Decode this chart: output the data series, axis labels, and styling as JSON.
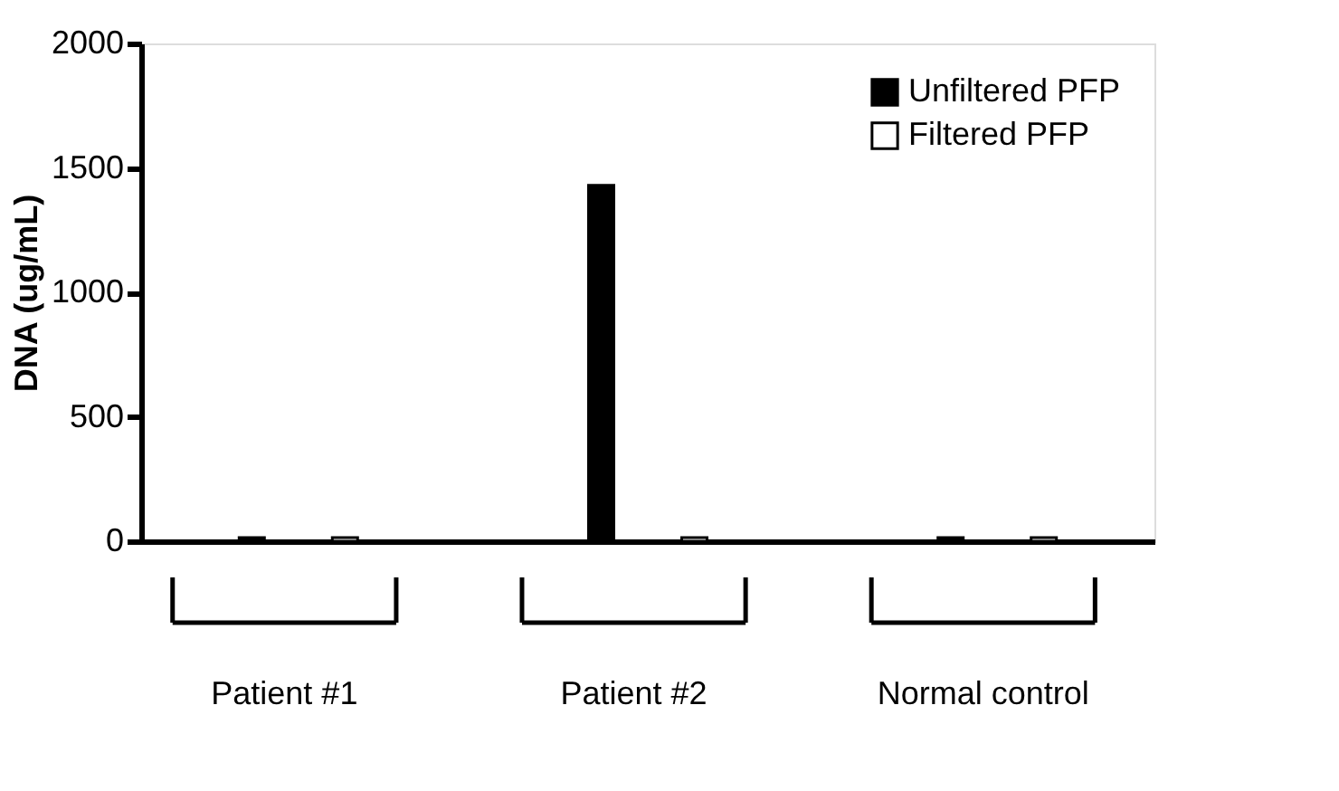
{
  "chart_data": {
    "type": "bar",
    "ylabel": "DNA (ug/mL)",
    "categories": [
      "Patient #1",
      "Patient #2",
      "Normal control"
    ],
    "series": [
      {
        "name": "Unfiltered PFP",
        "color": "#000000",
        "values": [
          15,
          1430,
          15
        ]
      },
      {
        "name": "Filtered PFP",
        "color": "#ffffff",
        "values": [
          15,
          15,
          15
        ]
      }
    ],
    "ylim": [
      0,
      2000
    ],
    "yticks": [
      0,
      500,
      1000,
      1500,
      2000
    ],
    "grid": false,
    "legend": "top right"
  }
}
